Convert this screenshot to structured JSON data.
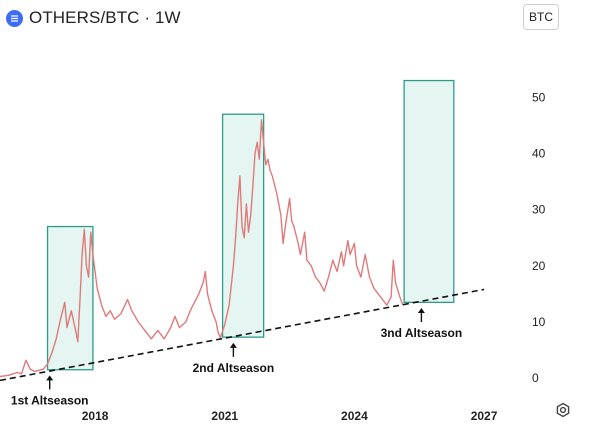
{
  "header": {
    "title": "OTHERS/BTC · 1W",
    "logo_icon": "blue-circle-logo"
  },
  "currency_badge": "BTC",
  "settings_icon": "gear-hexagon-icon",
  "chart_data": {
    "type": "line",
    "title": "OTHERS/BTC · 1W",
    "x_ticks": [
      "2018",
      "2021",
      "2024",
      "2027"
    ],
    "y_ticks": [
      "0",
      "10",
      "20",
      "30",
      "40",
      "50"
    ],
    "ylim": [
      -3,
      62
    ],
    "xlim": [
      2015.8,
      2027.6
    ],
    "price_color": "#e07a7a",
    "price_series": [
      [
        2015.8,
        0.3
      ],
      [
        2016.0,
        0.5
      ],
      [
        2016.2,
        1.0
      ],
      [
        2016.3,
        0.8
      ],
      [
        2016.4,
        3.2
      ],
      [
        2016.5,
        1.6
      ],
      [
        2016.6,
        1.2
      ],
      [
        2016.8,
        1.6
      ],
      [
        2016.9,
        2.5
      ],
      [
        2017.0,
        4.5
      ],
      [
        2017.1,
        7.0
      ],
      [
        2017.2,
        10.5
      ],
      [
        2017.3,
        13.5
      ],
      [
        2017.35,
        9.0
      ],
      [
        2017.45,
        12.0
      ],
      [
        2017.55,
        8.5
      ],
      [
        2017.6,
        6.5
      ],
      [
        2017.65,
        14.0
      ],
      [
        2017.7,
        22.0
      ],
      [
        2017.75,
        26.5
      ],
      [
        2017.8,
        20.0
      ],
      [
        2017.85,
        18.0
      ],
      [
        2017.9,
        26.0
      ],
      [
        2017.95,
        22.0
      ],
      [
        2018.05,
        16.0
      ],
      [
        2018.15,
        13.0
      ],
      [
        2018.25,
        11.0
      ],
      [
        2018.35,
        12.0
      ],
      [
        2018.45,
        10.5
      ],
      [
        2018.6,
        11.5
      ],
      [
        2018.75,
        14.0
      ],
      [
        2018.85,
        12.0
      ],
      [
        2019.0,
        10.0
      ],
      [
        2019.15,
        8.5
      ],
      [
        2019.3,
        7.0
      ],
      [
        2019.45,
        8.5
      ],
      [
        2019.6,
        7.0
      ],
      [
        2019.75,
        9.0
      ],
      [
        2019.85,
        11.0
      ],
      [
        2019.95,
        9.0
      ],
      [
        2020.1,
        10.0
      ],
      [
        2020.2,
        12.0
      ],
      [
        2020.3,
        13.5
      ],
      [
        2020.4,
        15.0
      ],
      [
        2020.5,
        17.0
      ],
      [
        2020.55,
        19.0
      ],
      [
        2020.6,
        15.0
      ],
      [
        2020.7,
        12.0
      ],
      [
        2020.8,
        10.0
      ],
      [
        2020.85,
        8.0
      ],
      [
        2020.9,
        7.2
      ],
      [
        2021.0,
        9.5
      ],
      [
        2021.1,
        13.0
      ],
      [
        2021.2,
        20.0
      ],
      [
        2021.25,
        25.0
      ],
      [
        2021.3,
        31.0
      ],
      [
        2021.35,
        36.0
      ],
      [
        2021.4,
        27.0
      ],
      [
        2021.45,
        25.0
      ],
      [
        2021.5,
        31.0
      ],
      [
        2021.55,
        26.0
      ],
      [
        2021.6,
        29.0
      ],
      [
        2021.65,
        34.0
      ],
      [
        2021.7,
        40.0
      ],
      [
        2021.75,
        42.0
      ],
      [
        2021.8,
        39.0
      ],
      [
        2021.85,
        46.0
      ],
      [
        2021.9,
        42.0
      ],
      [
        2021.95,
        38.0
      ],
      [
        2022.0,
        39.0
      ],
      [
        2022.05,
        37.0
      ],
      [
        2022.1,
        36.0
      ],
      [
        2022.2,
        33.0
      ],
      [
        2022.3,
        29.0
      ],
      [
        2022.35,
        24.0
      ],
      [
        2022.4,
        27.0
      ],
      [
        2022.5,
        32.0
      ],
      [
        2022.55,
        28.0
      ],
      [
        2022.6,
        27.0
      ],
      [
        2022.7,
        24.0
      ],
      [
        2022.75,
        22.0
      ],
      [
        2022.85,
        26.0
      ],
      [
        2022.9,
        21.0
      ],
      [
        2023.0,
        20.0
      ],
      [
        2023.1,
        18.0
      ],
      [
        2023.2,
        17.0
      ],
      [
        2023.3,
        15.5
      ],
      [
        2023.4,
        18.0
      ],
      [
        2023.5,
        21.0
      ],
      [
        2023.6,
        19.0
      ],
      [
        2023.7,
        22.5
      ],
      [
        2023.75,
        20.0
      ],
      [
        2023.85,
        24.5
      ],
      [
        2023.9,
        22.0
      ],
      [
        2024.0,
        24.0
      ],
      [
        2024.05,
        20.0
      ],
      [
        2024.15,
        18.0
      ],
      [
        2024.25,
        22.0
      ],
      [
        2024.35,
        18.0
      ],
      [
        2024.45,
        16.0
      ],
      [
        2024.55,
        15.0
      ],
      [
        2024.65,
        14.0
      ],
      [
        2024.75,
        13.0
      ],
      [
        2024.85,
        14.5
      ],
      [
        2024.9,
        21.0
      ],
      [
        2024.95,
        17.0
      ],
      [
        2025.05,
        14.5
      ],
      [
        2025.12,
        13.0
      ]
    ],
    "trendline": {
      "points": [
        [
          2015.8,
          -0.4
        ],
        [
          2027.0,
          15.8
        ]
      ],
      "color": "#111111",
      "style": "dashed"
    },
    "highlight_boxes": [
      {
        "x0": 2016.9,
        "x1": 2017.95,
        "y0": 1.5,
        "y1": 27
      },
      {
        "x0": 2020.95,
        "x1": 2021.9,
        "y0": 7.3,
        "y1": 47
      },
      {
        "x0": 2025.15,
        "x1": 2026.3,
        "y0": 13.5,
        "y1": 53
      }
    ],
    "box_fill": "#e4f5f2",
    "box_stroke": "#2e9b8b",
    "annotations": [
      {
        "label": "1st Altseason",
        "x": 2016.95,
        "y": 1.2
      },
      {
        "label": "2nd Altseason",
        "x": 2021.2,
        "y": 7.0
      },
      {
        "label": "3nd Altseason",
        "x": 2025.55,
        "y": 13.2
      }
    ]
  }
}
